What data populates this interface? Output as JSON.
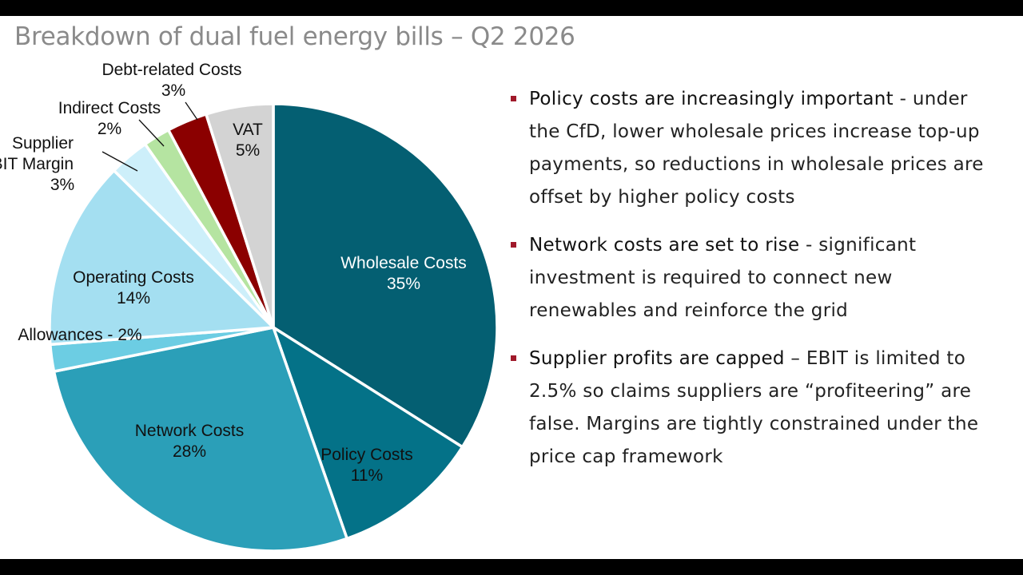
{
  "title": "Breakdown of dual fuel energy bills – Q2 2026",
  "colors": {
    "wholesale": "#045f72",
    "policy": "#047288",
    "network": "#2b9fb8",
    "allowances": "#6ccde3",
    "operating": "#a4dff1",
    "ebit": "#cdeffa",
    "indirect": "#b5e4a1",
    "debt": "#8b0000",
    "vat": "#d3d3d3",
    "bullet_marker": "#a0192a"
  },
  "chart_data": {
    "type": "pie",
    "title": "Breakdown of dual fuel energy bills – Q2 2026",
    "start": "12 o'clock, clockwise",
    "slices": [
      {
        "name": "Wholesale Costs",
        "value": 35,
        "label": "35%"
      },
      {
        "name": "Policy Costs",
        "value": 11,
        "label": "11%"
      },
      {
        "name": "Network Costs",
        "value": 28,
        "label": "28%"
      },
      {
        "name": "Allowances",
        "value": 2,
        "label": "Allowances - 2%"
      },
      {
        "name": "Operating Costs",
        "value": 14,
        "label": "14%"
      },
      {
        "name": "Supplier EBIT Margin",
        "value": 3,
        "label": "3%"
      },
      {
        "name": "Indirect Costs",
        "value": 2,
        "label": "2%"
      },
      {
        "name": "Debt-related Costs",
        "value": 3,
        "label": "3%"
      },
      {
        "name": "VAT",
        "value": 5,
        "label": "5%"
      }
    ]
  },
  "bullets": [
    {
      "lead": "Policy costs are increasingly important",
      "text": " - under the CfD, lower wholesale prices increase top-up payments, so reductions in wholesale prices are offset by higher policy costs"
    },
    {
      "lead": "Network costs are set to rise",
      "text": " - significant investment is required to connect new renewables and reinforce the grid"
    },
    {
      "lead": "Supplier profits are capped",
      "text": " – EBIT is limited to 2.5% so claims suppliers are “profiteering” are false. Margins are tightly constrained under the price cap framework"
    }
  ]
}
